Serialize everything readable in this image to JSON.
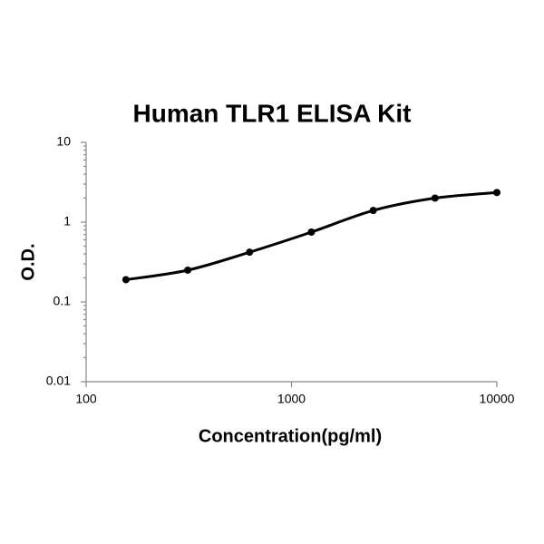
{
  "chart_data": {
    "type": "scatter",
    "title": "Human TLR1 ELISA Kit",
    "x_label": "Concentration(pg/ml)",
    "y_label": "O.D.",
    "x": [
      156.25,
      312.5,
      625,
      1250,
      2500,
      5000,
      10000
    ],
    "values": [
      0.19,
      0.25,
      0.42,
      0.75,
      1.4,
      2.0,
      2.35
    ],
    "color": "#000000",
    "fit_curve": true,
    "xscale": "log",
    "yscale": "log",
    "xlim": [
      100,
      10000
    ],
    "xticks": [
      100,
      1000,
      10000
    ],
    "ylim": [
      0.01,
      10
    ],
    "yticks": [
      0.01,
      0.1,
      1,
      10
    ]
  }
}
